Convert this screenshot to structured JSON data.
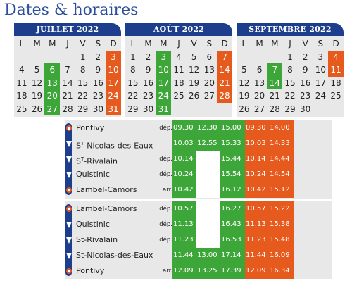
{
  "title": "Dates & horaires",
  "weekdays": [
    "L",
    "M",
    "M",
    "J",
    "V",
    "S",
    "D"
  ],
  "calendars": [
    {
      "month": "JUILLET 2022",
      "rows": [
        [
          {
            "d": ""
          },
          {
            "d": ""
          },
          {
            "d": ""
          },
          {
            "d": ""
          },
          {
            "d": "1"
          },
          {
            "d": "2"
          },
          {
            "d": "3",
            "s": "o"
          }
        ],
        [
          {
            "d": "4"
          },
          {
            "d": "5"
          },
          {
            "d": "6",
            "s": "g"
          },
          {
            "d": "7"
          },
          {
            "d": "8"
          },
          {
            "d": "9"
          },
          {
            "d": "10",
            "s": "o"
          }
        ],
        [
          {
            "d": "11"
          },
          {
            "d": "12"
          },
          {
            "d": "13",
            "s": "g"
          },
          {
            "d": "14"
          },
          {
            "d": "15"
          },
          {
            "d": "16"
          },
          {
            "d": "17",
            "s": "o"
          }
        ],
        [
          {
            "d": "18"
          },
          {
            "d": "19"
          },
          {
            "d": "20",
            "s": "g"
          },
          {
            "d": "21"
          },
          {
            "d": "22"
          },
          {
            "d": "23"
          },
          {
            "d": "24",
            "s": "o"
          }
        ],
        [
          {
            "d": "25"
          },
          {
            "d": "26"
          },
          {
            "d": "27",
            "s": "g"
          },
          {
            "d": "28"
          },
          {
            "d": "29"
          },
          {
            "d": "30"
          },
          {
            "d": "31",
            "s": "o"
          }
        ]
      ]
    },
    {
      "month": "AOÛT 2022",
      "rows": [
        [
          {
            "d": "1"
          },
          {
            "d": "2"
          },
          {
            "d": "3",
            "s": "g"
          },
          {
            "d": "4"
          },
          {
            "d": "5"
          },
          {
            "d": "6"
          },
          {
            "d": "7",
            "s": "o"
          }
        ],
        [
          {
            "d": "8"
          },
          {
            "d": "9"
          },
          {
            "d": "10",
            "s": "g"
          },
          {
            "d": "11"
          },
          {
            "d": "12"
          },
          {
            "d": "13"
          },
          {
            "d": "14",
            "s": "o"
          }
        ],
        [
          {
            "d": "15"
          },
          {
            "d": "16"
          },
          {
            "d": "17",
            "s": "g"
          },
          {
            "d": "18"
          },
          {
            "d": "19"
          },
          {
            "d": "20"
          },
          {
            "d": "21",
            "s": "o"
          }
        ],
        [
          {
            "d": "22"
          },
          {
            "d": "23"
          },
          {
            "d": "24",
            "s": "g"
          },
          {
            "d": "25"
          },
          {
            "d": "26"
          },
          {
            "d": "27"
          },
          {
            "d": "28",
            "s": "o"
          }
        ],
        [
          {
            "d": "29"
          },
          {
            "d": "30"
          },
          {
            "d": "31",
            "s": "g"
          },
          {
            "d": ""
          },
          {
            "d": ""
          },
          {
            "d": ""
          },
          {
            "d": ""
          }
        ]
      ]
    },
    {
      "month": "SEPTEMBRE 2022",
      "rows": [
        [
          {
            "d": ""
          },
          {
            "d": ""
          },
          {
            "d": ""
          },
          {
            "d": "1"
          },
          {
            "d": "2"
          },
          {
            "d": "3"
          },
          {
            "d": "4",
            "s": "o"
          }
        ],
        [
          {
            "d": "5"
          },
          {
            "d": "6"
          },
          {
            "d": "7",
            "s": "g"
          },
          {
            "d": "8"
          },
          {
            "d": "9"
          },
          {
            "d": "10"
          },
          {
            "d": "11",
            "s": "o"
          }
        ],
        [
          {
            "d": "12"
          },
          {
            "d": "13"
          },
          {
            "d": "14",
            "s": "g"
          },
          {
            "d": "15"
          },
          {
            "d": "16"
          },
          {
            "d": "17"
          },
          {
            "d": "18"
          }
        ],
        [
          {
            "d": "19"
          },
          {
            "d": "20"
          },
          {
            "d": "21"
          },
          {
            "d": "22"
          },
          {
            "d": "23"
          },
          {
            "d": "24"
          },
          {
            "d": "25"
          }
        ],
        [
          {
            "d": "26"
          },
          {
            "d": "27"
          },
          {
            "d": "28"
          },
          {
            "d": "29"
          },
          {
            "d": "30"
          },
          {
            "d": ""
          },
          {
            "d": ""
          }
        ]
      ]
    }
  ],
  "timetables": [
    {
      "stops": [
        {
          "name": "Pontivy",
          "kind": "dép.",
          "mark": "end",
          "green": [
            "09.30",
            "12.30",
            "15.00"
          ],
          "orange": [
            "09.30",
            "14.00"
          ]
        },
        {
          "name": "ST-Nicolas-des-Eaux",
          "kind": "",
          "mark": "mid",
          "green": [
            "10.03",
            "12.55",
            "15.33"
          ],
          "orange": [
            "10.03",
            "14.33"
          ]
        },
        {
          "name": "ST-Rivalain",
          "kind": "dép.",
          "mark": "mid",
          "green": [
            "10.14",
            "",
            "15.44"
          ],
          "orange": [
            "10.14",
            "14.44"
          ]
        },
        {
          "name": "Quistinic",
          "kind": "dép.",
          "mark": "mid",
          "green": [
            "10.24",
            "",
            "15.54"
          ],
          "orange": [
            "10.24",
            "14.54"
          ]
        },
        {
          "name": "Lambel-Camors",
          "kind": "arr.",
          "mark": "end",
          "green": [
            "10.42",
            "",
            "16.12"
          ],
          "orange": [
            "10.42",
            "15.12"
          ]
        }
      ]
    },
    {
      "stops": [
        {
          "name": "Lambel-Camors",
          "kind": "dép.",
          "mark": "end",
          "green": [
            "10.57",
            "",
            "16.27"
          ],
          "orange": [
            "10.57",
            "15.22"
          ]
        },
        {
          "name": "Quistinic",
          "kind": "dép.",
          "mark": "mid",
          "green": [
            "11.13",
            "",
            "16.43"
          ],
          "orange": [
            "11.13",
            "15.38"
          ]
        },
        {
          "name": "St-Rivalain",
          "kind": "dép.",
          "mark": "mid",
          "green": [
            "11.23",
            "",
            "16.53"
          ],
          "orange": [
            "11.23",
            "15.48"
          ]
        },
        {
          "name": "St-Nicolas-des-Eaux",
          "kind": "",
          "mark": "mid",
          "green": [
            "11.44",
            "13.00",
            "17.14"
          ],
          "orange": [
            "11.44",
            "16.09"
          ]
        },
        {
          "name": "Pontivy",
          "kind": "arr.",
          "mark": "end",
          "green": [
            "12.09",
            "13.25",
            "17.39"
          ],
          "orange": [
            "12.09",
            "16.34"
          ]
        }
      ]
    }
  ],
  "colors": {
    "navy": "#1d3e8c",
    "green": "#3da638",
    "orange": "#e65a1e",
    "grey": "#e8e8e8",
    "title": "#2d4e9c"
  }
}
